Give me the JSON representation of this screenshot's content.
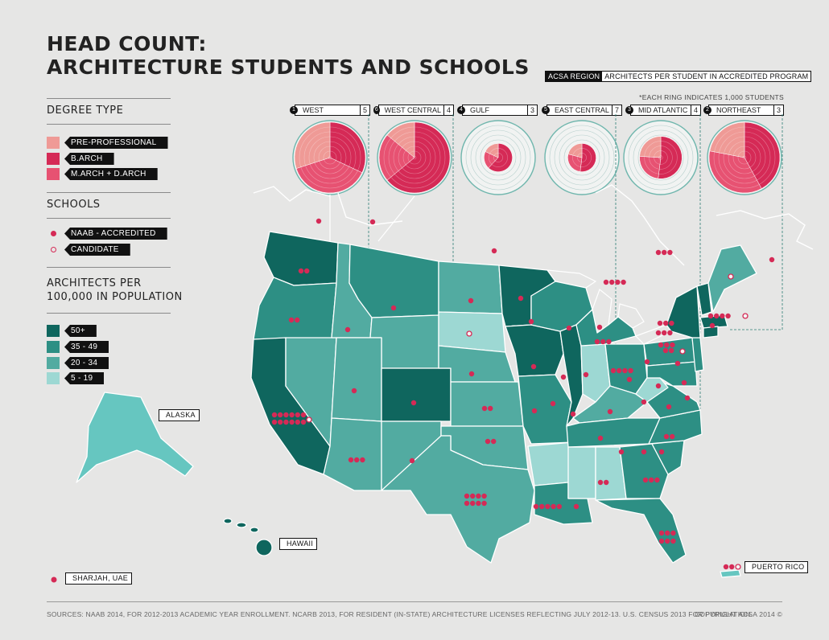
{
  "title": {
    "line1": "HEAD COUNT:",
    "line2": "ARCHITECTURE STUDENTS AND SCHOOLS"
  },
  "legend_header": {
    "region_label": "ACSA REGION",
    "metric_label": "ARCHITECTS PER STUDENT IN ACCREDITED PROGRAM",
    "ring_note": "*EACH RING INDICATES 1,000 STUDENTS"
  },
  "degree_type": {
    "heading": "DEGREE TYPE",
    "items": [
      {
        "label": "PRE-PROFESSIONAL",
        "color": "#ef9a96"
      },
      {
        "label": "B.ARCH",
        "color": "#d52a56"
      },
      {
        "label": "M.ARCH + D.ARCH",
        "color": "#e75272"
      }
    ]
  },
  "schools": {
    "heading": "SCHOOLS",
    "items": [
      {
        "label": "NAAB - ACCREDITED",
        "marker": "filled-dot"
      },
      {
        "label": "CANDIDATE",
        "marker": "hollow-dot"
      }
    ]
  },
  "density": {
    "heading_line1": "ARCHITECTS PER",
    "heading_line2": "100,000 IN POPULATION",
    "items": [
      {
        "label": "50+",
        "color": "#0f665e"
      },
      {
        "label": "35 - 49",
        "color": "#2d8f84"
      },
      {
        "label": "20 - 34",
        "color": "#52aba1"
      },
      {
        "label": "5 - 19",
        "color": "#9dd8d3"
      }
    ]
  },
  "regions": [
    {
      "num": "1",
      "name": "WEST",
      "value": "5",
      "rings": 5,
      "slices": [
        0.32,
        0.38,
        0.3
      ]
    },
    {
      "num": "6",
      "name": "WEST CENTRAL",
      "value": "4",
      "rings": 5,
      "slices": [
        0.64,
        0.22,
        0.14
      ]
    },
    {
      "num": "4",
      "name": "GULF",
      "value": "3",
      "rings": 2,
      "slices": [
        0.62,
        0.2,
        0.18
      ]
    },
    {
      "num": "5",
      "name": "EAST CENTRAL",
      "value": "7",
      "rings": 2,
      "slices": [
        0.52,
        0.27,
        0.21
      ]
    },
    {
      "num": "3",
      "name": "MID ATLANTIC",
      "value": "4",
      "rings": 3,
      "slices": [
        0.52,
        0.24,
        0.24
      ]
    },
    {
      "num": "2",
      "name": "NORTHEAST",
      "value": "3",
      "rings": 5,
      "slices": [
        0.42,
        0.36,
        0.22
      ]
    }
  ],
  "map_labels": {
    "alaska": "ALASKA",
    "hawaii": "HAWAII",
    "puerto_rico": "PUERTO RICO",
    "sharjah": "SHARJAH, UAE"
  },
  "footer": {
    "sources": "SOURCES: NAAB 2014, FOR 2012-2013 ACADEMIC YEAR ENROLLMENT. NCARB 2013, FOR RESIDENT (IN-STATE) ARCHITECTURE LICENSES REFLECTING JULY 2012-13. U.S. CENSUS 2013 FOR POPULATION.",
    "copyright": "COPYRIGHT ACSA 2014 ©"
  },
  "colors": {
    "background": "#e6e6e5",
    "school_dot": "#d52a56",
    "ring_bg": "#f1f3f2",
    "ring_stroke": "#b6cfcc"
  }
}
